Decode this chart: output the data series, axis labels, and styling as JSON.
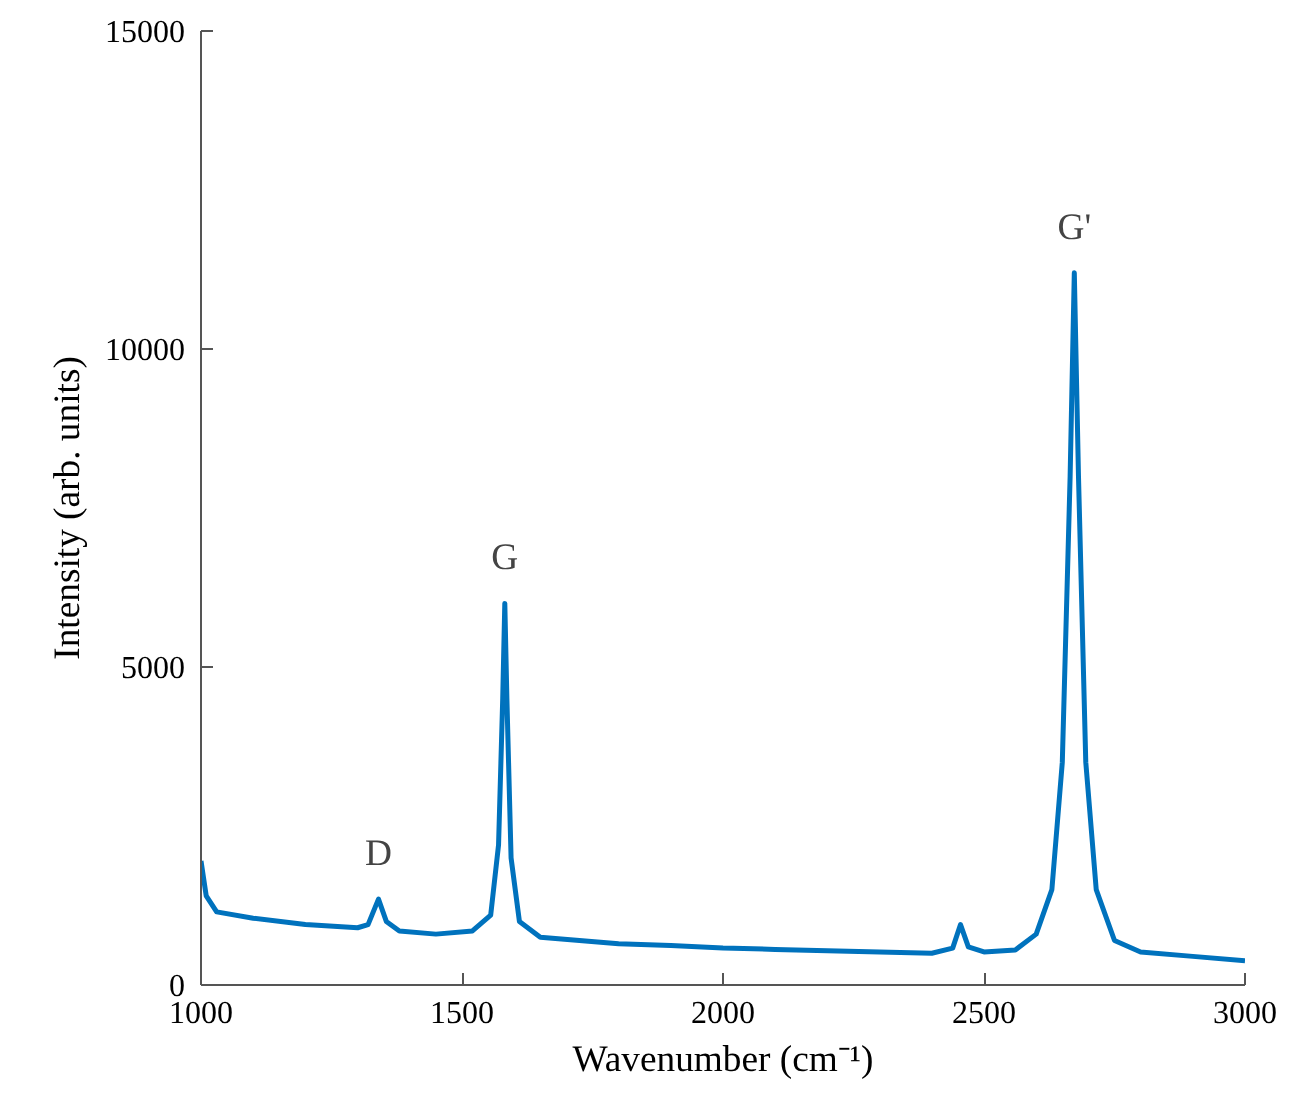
{
  "chart_data": {
    "type": "line",
    "xlabel": "Wavenumber (cm⁻¹)",
    "ylabel": "Intensity (arb. units)",
    "xlim": [
      1000,
      3000
    ],
    "ylim": [
      0,
      15000
    ],
    "xticks": [
      1000,
      1500,
      2000,
      2500,
      3000
    ],
    "yticks": [
      0,
      5000,
      10000,
      15000
    ],
    "grid": false,
    "marker": "none",
    "line_style": "solid",
    "series": [
      {
        "color": "#0072bd",
        "x": [
          1000,
          1010,
          1030,
          1100,
          1200,
          1300,
          1320,
          1340,
          1355,
          1380,
          1450,
          1520,
          1555,
          1570,
          1578,
          1582,
          1586,
          1594,
          1610,
          1650,
          1800,
          1900,
          2000,
          2100,
          2200,
          2300,
          2400,
          2440,
          2455,
          2470,
          2500,
          2560,
          2600,
          2630,
          2650,
          2665,
          2673,
          2681,
          2695,
          2715,
          2750,
          2800,
          2900,
          3000
        ],
        "values": [
          1950,
          1400,
          1150,
          1050,
          950,
          900,
          950,
          1350,
          1000,
          850,
          800,
          850,
          1100,
          2200,
          4500,
          6000,
          4500,
          2000,
          1000,
          750,
          650,
          620,
          580,
          560,
          540,
          520,
          500,
          580,
          950,
          600,
          520,
          550,
          800,
          1500,
          3500,
          8000,
          11200,
          8000,
          3500,
          1500,
          700,
          520,
          450,
          380
        ]
      }
    ],
    "annotations": [
      {
        "text": "D",
        "x": 1340,
        "y": 1350
      },
      {
        "text": "G",
        "x": 1582,
        "y": 6000
      },
      {
        "text": "G'",
        "x": 2673,
        "y": 11200
      }
    ]
  }
}
